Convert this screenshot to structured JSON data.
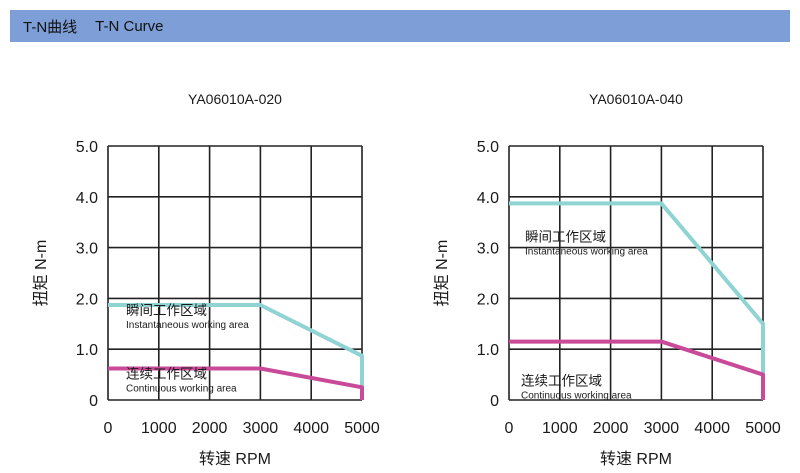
{
  "header": {
    "title_cn": "T-N曲线",
    "title_en": "T-N Curve"
  },
  "chart_data": [
    {
      "type": "line",
      "title": "YA06010A-020",
      "xlabel": "转速  RPM",
      "ylabel": "扭矩  N-m",
      "xlim": [
        0,
        5000
      ],
      "ylim": [
        0,
        5
      ],
      "xticks": [
        "0",
        "1000",
        "2000",
        "3000",
        "4000",
        "5000"
      ],
      "yticks": [
        "0",
        "1.0",
        "2.0",
        "3.0",
        "4.0",
        "5.0"
      ],
      "grid": true,
      "series": [
        {
          "name_cn": "瞬间工作区域",
          "name_en": "Instantaneous working area",
          "color": "#8fd3d3",
          "x": [
            0,
            3000,
            5000,
            5000
          ],
          "y": [
            1.87,
            1.87,
            0.87,
            0
          ]
        },
        {
          "name_cn": "连续工作区域",
          "name_en": "Continuous working area",
          "color": "#c84a98",
          "x": [
            0,
            3000,
            5000,
            5000
          ],
          "y": [
            0.62,
            0.62,
            0.25,
            0
          ]
        }
      ]
    },
    {
      "type": "line",
      "title": "YA06010A-040",
      "xlabel": "转速  RPM",
      "ylabel": "扭矩  N-m",
      "xlim": [
        0,
        5000
      ],
      "ylim": [
        0,
        5
      ],
      "xticks": [
        "0",
        "1000",
        "2000",
        "3000",
        "4000",
        "5000"
      ],
      "yticks": [
        "0",
        "1.0",
        "2.0",
        "3.0",
        "4.0",
        "5.0"
      ],
      "grid": true,
      "series": [
        {
          "name_cn": "瞬间工作区域",
          "name_en": "Instantaneous working area",
          "color": "#8fd3d3",
          "x": [
            0,
            3000,
            5000,
            5000
          ],
          "y": [
            3.87,
            3.87,
            1.5,
            0
          ]
        },
        {
          "name_cn": "连续工作区域",
          "name_en": "Continuous working area",
          "color": "#c84a98",
          "x": [
            0,
            3000,
            5000,
            5000
          ],
          "y": [
            1.15,
            1.15,
            0.5,
            0
          ]
        }
      ]
    }
  ]
}
